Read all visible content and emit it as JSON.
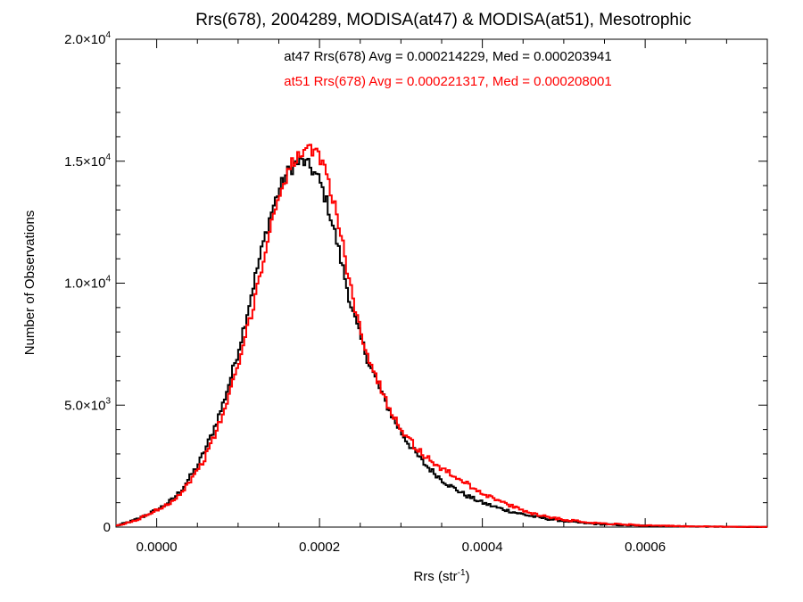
{
  "chart_data": {
    "type": "line",
    "title": "Rrs(678), 2004289, MODISA(at47) & MODISA(at51), Mesotrophic",
    "xlabel_main": "Rrs (str",
    "xlabel_exp": "-1",
    "xlabel_close": ")",
    "ylabel": "Number of Observations",
    "xlim": [
      -5e-05,
      0.00075
    ],
    "ylim": [
      0,
      20000
    ],
    "grid": false,
    "x_ticks": [
      {
        "value": 0.0,
        "label": "0.0000"
      },
      {
        "value": 0.0002,
        "label": "0.0002"
      },
      {
        "value": 0.0004,
        "label": "0.0004"
      },
      {
        "value": 0.0006,
        "label": "0.0006"
      }
    ],
    "y_ticks": [
      {
        "value": 0,
        "mant": "0",
        "exp": ""
      },
      {
        "value": 5000,
        "mant": "5.0×10",
        "exp": "3"
      },
      {
        "value": 10000,
        "mant": "1.0×10",
        "exp": "4"
      },
      {
        "value": 15000,
        "mant": "1.5×10",
        "exp": "4"
      },
      {
        "value": 20000,
        "mant": "2.0×10",
        "exp": "4"
      }
    ],
    "annotations": [
      {
        "text": "at47 Rrs(678) Avg = 0.000214229, Med = 0.000203941",
        "color": "#000000"
      },
      {
        "text": "at51 Rrs(678) Avg = 0.000221317, Med = 0.000208001",
        "color": "#ff0000"
      }
    ],
    "series": [
      {
        "color": "#000000",
        "x": [
          -5e-05,
          -4e-05,
          -3e-05,
          -2e-05,
          -1e-05,
          0.0,
          1e-05,
          2e-05,
          3e-05,
          4e-05,
          5e-05,
          6e-05,
          7e-05,
          8e-05,
          9e-05,
          0.0001,
          0.00011,
          0.00012,
          0.00013,
          0.00014,
          0.00015,
          0.00016,
          0.00017,
          0.00018,
          0.00019,
          0.0002,
          0.00021,
          0.00022,
          0.00023,
          0.00024,
          0.00025,
          0.00026,
          0.00027,
          0.00028,
          0.00029,
          0.0003,
          0.00031,
          0.00032,
          0.00033,
          0.00034,
          0.00035,
          0.00036,
          0.00037,
          0.00038,
          0.00039,
          0.0004,
          0.00042,
          0.00044,
          0.00046,
          0.00048,
          0.0005,
          0.00052,
          0.00054,
          0.00056,
          0.00058,
          0.0006,
          0.00062,
          0.00064,
          0.00066,
          0.00068,
          0.0007,
          0.00072,
          0.00075
        ],
        "y": [
          50,
          150,
          250,
          380,
          550,
          700,
          900,
          1150,
          1500,
          2000,
          2500,
          3200,
          4000,
          4900,
          6000,
          7200,
          8600,
          10100,
          11500,
          12800,
          13800,
          14500,
          14900,
          15000,
          14700,
          14200,
          13200,
          11900,
          10400,
          8900,
          7800,
          6800,
          6000,
          5200,
          4500,
          3900,
          3400,
          2950,
          2550,
          2250,
          1950,
          1700,
          1500,
          1300,
          1150,
          1000,
          780,
          600,
          450,
          340,
          250,
          180,
          130,
          95,
          70,
          55,
          40,
          30,
          22,
          16,
          12,
          8,
          5
        ]
      },
      {
        "color": "#ff0000",
        "x": [
          -5e-05,
          -4e-05,
          -3e-05,
          -2e-05,
          -1e-05,
          0.0,
          1e-05,
          2e-05,
          3e-05,
          4e-05,
          5e-05,
          6e-05,
          7e-05,
          8e-05,
          9e-05,
          0.0001,
          0.00011,
          0.00012,
          0.00013,
          0.00014,
          0.00015,
          0.00016,
          0.00017,
          0.00018,
          0.00019,
          0.0002,
          0.00021,
          0.00022,
          0.00023,
          0.00024,
          0.00025,
          0.00026,
          0.00027,
          0.00028,
          0.00029,
          0.0003,
          0.00031,
          0.00032,
          0.00033,
          0.00034,
          0.00035,
          0.00036,
          0.00037,
          0.00038,
          0.00039,
          0.0004,
          0.00042,
          0.00044,
          0.00046,
          0.00048,
          0.0005,
          0.00052,
          0.00054,
          0.00056,
          0.00058,
          0.0006,
          0.00062,
          0.00064,
          0.00066,
          0.00068,
          0.0007,
          0.00072,
          0.00075
        ],
        "y": [
          40,
          130,
          230,
          360,
          530,
          700,
          880,
          1100,
          1400,
          1850,
          2300,
          2900,
          3650,
          4500,
          5500,
          6600,
          7900,
          9300,
          10800,
          12300,
          13600,
          14500,
          15100,
          15300,
          15400,
          15200,
          14400,
          13000,
          11300,
          9500,
          8100,
          7000,
          6100,
          5300,
          4650,
          4050,
          3600,
          3200,
          2900,
          2650,
          2400,
          2200,
          2000,
          1800,
          1600,
          1400,
          1080,
          800,
          580,
          420,
          310,
          230,
          170,
          130,
          95,
          70,
          52,
          40,
          30,
          22,
          16,
          11,
          7
        ]
      }
    ]
  }
}
